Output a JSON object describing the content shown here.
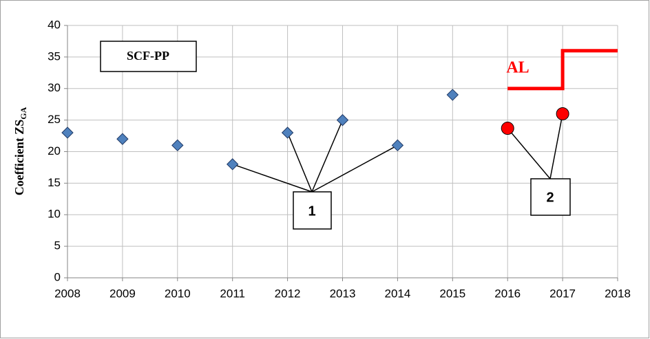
{
  "chart_data": {
    "type": "scatter",
    "ylabel": "Coefficient ZS",
    "ylabel_sub": "GA",
    "xlim": [
      2008,
      2018
    ],
    "xticks": [
      2008,
      2009,
      2010,
      2011,
      2012,
      2013,
      2014,
      2015,
      2016,
      2017,
      2018
    ],
    "ylim": [
      0,
      40
    ],
    "yticks": [
      0,
      5,
      10,
      15,
      20,
      25,
      30,
      35,
      40
    ],
    "grid": true,
    "series": [
      {
        "marker": "diamond",
        "color": "#4f81bd",
        "x": [
          2008,
          2009,
          2010,
          2011,
          2012,
          2013,
          2014,
          2015
        ],
        "values": [
          23,
          22,
          21,
          18,
          23,
          25,
          21,
          29
        ]
      },
      {
        "marker": "circle",
        "color": "#ff0000",
        "x": [
          2016,
          2017
        ],
        "values": [
          23.7,
          26
        ]
      },
      {
        "marker": "line",
        "color": "#ff0000",
        "x": [
          2016,
          2017,
          2017,
          2018
        ],
        "values": [
          30,
          30,
          36,
          36
        ]
      }
    ],
    "annotations": [
      "SCF-PP",
      "AL",
      "1",
      "2"
    ]
  }
}
